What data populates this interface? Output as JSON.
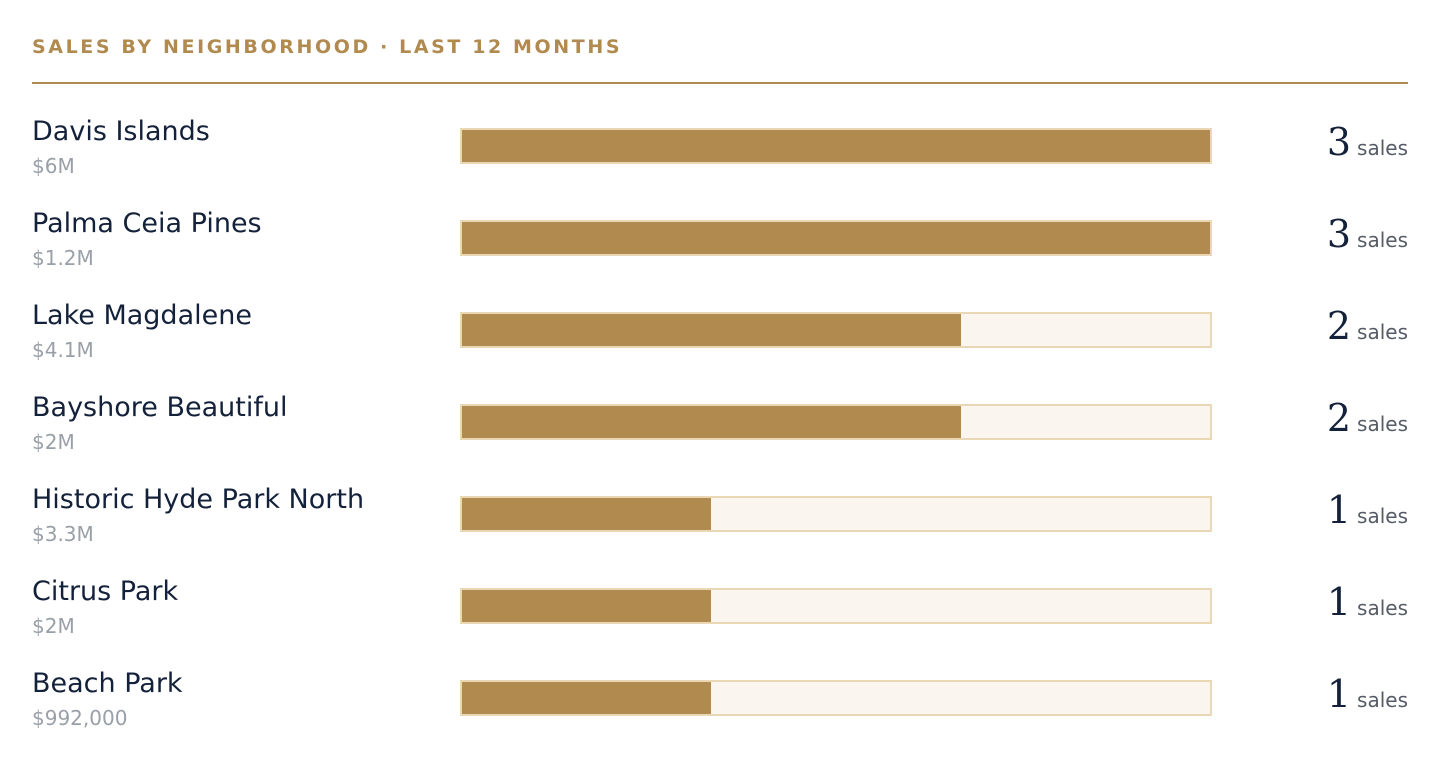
{
  "header": {
    "title": "SALES BY NEIGHBORHOOD · LAST 12 MONTHS"
  },
  "colors": {
    "accent": "#b08a4e",
    "track": "#faf6ef",
    "track_border": "#ead7b6",
    "label": "#14213a",
    "muted": "#9aa0a8"
  },
  "unit_label": "sales",
  "chart_data": {
    "type": "bar",
    "orientation": "horizontal",
    "title": "SALES BY NEIGHBORHOOD · LAST 12 MONTHS",
    "categories": [
      "Davis Islands",
      "Palma Ceia Pines",
      "Lake Magdalene",
      "Bayshore Beautiful",
      "Historic Hyde Park North",
      "Citrus Park",
      "Beach Park"
    ],
    "values": [
      3,
      3,
      2,
      2,
      1,
      1,
      1
    ],
    "volumes": [
      "$6M",
      "$1.2M",
      "$4.1M",
      "$2M",
      "$3.3M",
      "$2M",
      "$992,000"
    ],
    "xlim": [
      0,
      3
    ]
  }
}
